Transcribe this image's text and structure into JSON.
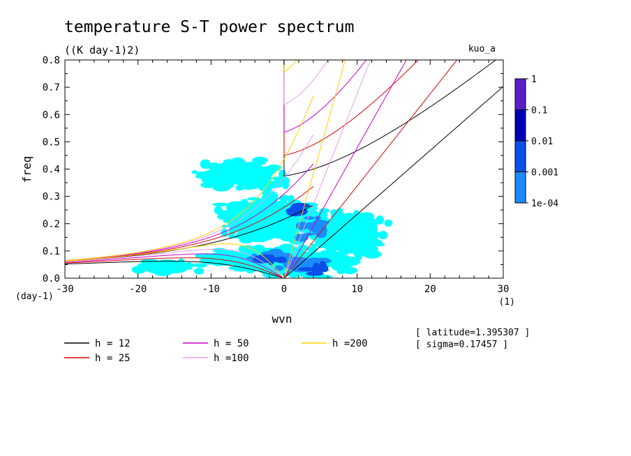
{
  "chart_data": {
    "type": "heatmap",
    "title": "temperature S-T power spectrum",
    "subtitle": "((K day-1)2)",
    "run_label": "kuo_a",
    "xlabel": "wvn",
    "xunit": "(1)",
    "ylabel": "freq",
    "yunit": "(day-1)",
    "xlim": [
      -30,
      30
    ],
    "ylim": [
      0,
      0.8
    ],
    "xticks": [
      -30,
      -20,
      -10,
      0,
      10,
      20,
      30
    ],
    "yticks": [
      0.0,
      0.1,
      0.2,
      0.3,
      0.4,
      0.5,
      0.6,
      0.7,
      0.8
    ],
    "colorbar": {
      "levels": [
        "1",
        "0.1",
        "0.01",
        "0.001",
        "1e-04"
      ],
      "colors": [
        "#5b1fc7",
        "#0000b8",
        "#0a4fe8",
        "#1a8cff",
        "#00ffff"
      ]
    },
    "info": [
      "[ latitude=1.395307 ]",
      "[ sigma=0.17457 ]"
    ],
    "series": [
      {
        "name": "h = 12",
        "h": 12,
        "color": "#000000"
      },
      {
        "name": "h = 25",
        "h": 25,
        "color": "#e00000"
      },
      {
        "name": "h = 50",
        "h": 50,
        "color": "#cc00cc"
      },
      {
        "name": "h =100",
        "h": 100,
        "color": "#e7a0e7"
      },
      {
        "name": "h =200",
        "h": 200,
        "color": "#ffd000"
      }
    ],
    "spectrum_regions": [
      {
        "level": "1e-04",
        "k": 2,
        "f": 0.05,
        "sk": 11,
        "sf": 0.07
      },
      {
        "level": "1e-04",
        "k": -4,
        "f": 0.07,
        "sk": 13,
        "sf": 0.06
      },
      {
        "level": "1e-04",
        "k": -2,
        "f": 0.22,
        "sk": 11,
        "sf": 0.12
      },
      {
        "level": "1e-04",
        "k": 9,
        "f": 0.16,
        "sk": 8,
        "sf": 0.12
      },
      {
        "level": "1e-04",
        "k": -6,
        "f": 0.38,
        "sk": 9,
        "sf": 0.08
      },
      {
        "level": "1e-04",
        "k": -16,
        "f": 0.04,
        "sk": 6,
        "sf": 0.04
      },
      {
        "level": "0.001",
        "k": 3,
        "f": 0.05,
        "sk": 5,
        "sf": 0.04
      },
      {
        "level": "0.001",
        "k": -1,
        "f": 0.08,
        "sk": 5,
        "sf": 0.03
      },
      {
        "level": "0.001",
        "k": 4,
        "f": 0.18,
        "sk": 3,
        "sf": 0.08
      },
      {
        "level": "0.01",
        "k": 4,
        "f": 0.03,
        "sk": 3,
        "sf": 0.025
      },
      {
        "level": "0.01",
        "k": -2,
        "f": 0.07,
        "sk": 3,
        "sf": 0.02
      },
      {
        "level": "0.01",
        "k": 2,
        "f": 0.25,
        "sk": 1.5,
        "sf": 0.03
      }
    ]
  }
}
